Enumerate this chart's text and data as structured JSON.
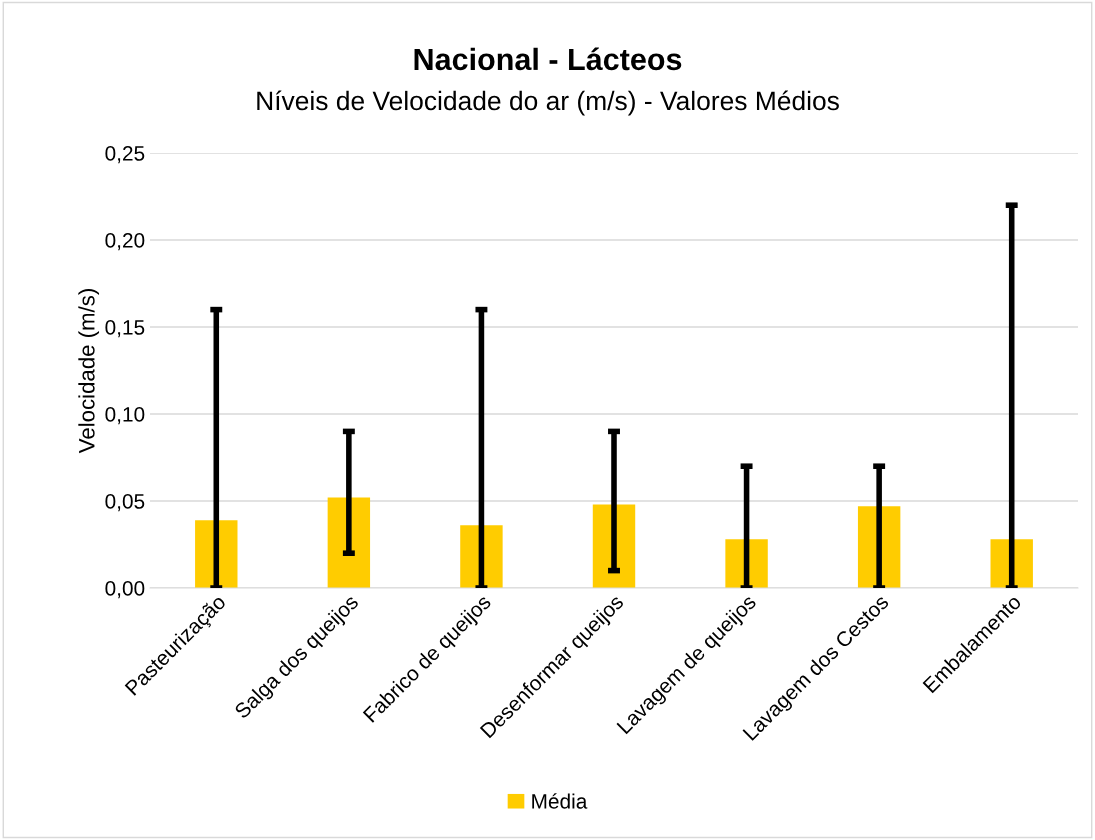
{
  "chart_data": {
    "type": "bar",
    "title": "Nacional - Lácteos",
    "subtitle": "Níveis de Velocidade do ar (m/s) - Valores Médios",
    "ylabel": "Velocidade (m/s)",
    "categories": [
      "Pasteurização",
      "Salga dos queijos",
      "Fabrico de queijos",
      "Desenformar queijos",
      "Lavagem de queijos",
      "Lavagem dos Cestos",
      "Embalamento"
    ],
    "series": [
      {
        "name": "Média",
        "color": "#ffcc00",
        "values": [
          0.039,
          0.052,
          0.036,
          0.048,
          0.028,
          0.047,
          0.028
        ],
        "errors": [
          [
            0,
            0.16
          ],
          [
            0.02,
            0.09
          ],
          [
            0,
            0.16
          ],
          [
            0.01,
            0.09
          ],
          [
            0,
            0.07
          ],
          [
            0,
            0.07
          ],
          [
            0,
            0.22
          ]
        ]
      }
    ],
    "ylim": [
      0,
      0.25
    ],
    "yticks": [
      {
        "value": 0,
        "label": "0,00"
      },
      {
        "value": 0.05,
        "label": "0,05"
      },
      {
        "value": 0.1,
        "label": "0,10"
      },
      {
        "value": 0.15,
        "label": "0,15"
      },
      {
        "value": 0.2,
        "label": "0,20"
      },
      {
        "value": 0.25,
        "label": "0,25"
      }
    ],
    "grid": "y",
    "legend": "bottom"
  }
}
